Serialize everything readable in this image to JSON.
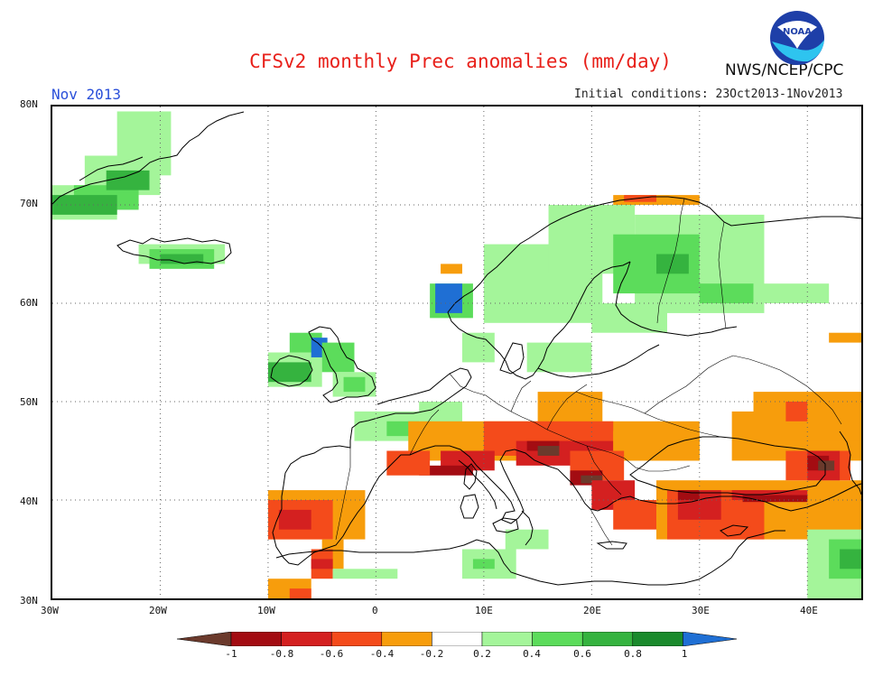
{
  "header": {
    "title": "CFSv2 monthly Prec anomalies (mm/day)",
    "org": "NWS/NCEP/CPC",
    "month": "Nov 2013",
    "initial_conditions": "Initial conditions: 23Oct2013-1Nov2013",
    "logo_text": "NOAA"
  },
  "map": {
    "lat_labels": [
      "80N",
      "70N",
      "60N",
      "50N",
      "40N",
      "30N"
    ],
    "lon_labels": [
      "30W",
      "20W",
      "10W",
      "0",
      "10E",
      "20E",
      "30E",
      "40E"
    ],
    "colors": {
      "c_lt1": "#6b3a2c",
      "c_m08": "#a30c12",
      "c_m06": "#d42020",
      "c_m04": "#f44b1b",
      "c_m02": "#f79d0c",
      "c_p02": "#a4f59a",
      "c_p04": "#5cdc5b",
      "c_p06": "#35b33f",
      "c_p08": "#1a8a2c",
      "c_gt1": "#1f6fd4"
    }
  },
  "colorbar": {
    "labels": [
      "-1",
      "-0.8",
      "-0.6",
      "-0.4",
      "-0.2",
      "0.2",
      "0.4",
      "0.6",
      "0.8",
      "1"
    ],
    "colors": [
      "#6b3a2c",
      "#a30c12",
      "#d42020",
      "#f44b1b",
      "#f79d0c",
      "#ffffff",
      "#a4f59a",
      "#5cdc5b",
      "#35b33f",
      "#1a8a2c",
      "#1f6fd4"
    ]
  }
}
